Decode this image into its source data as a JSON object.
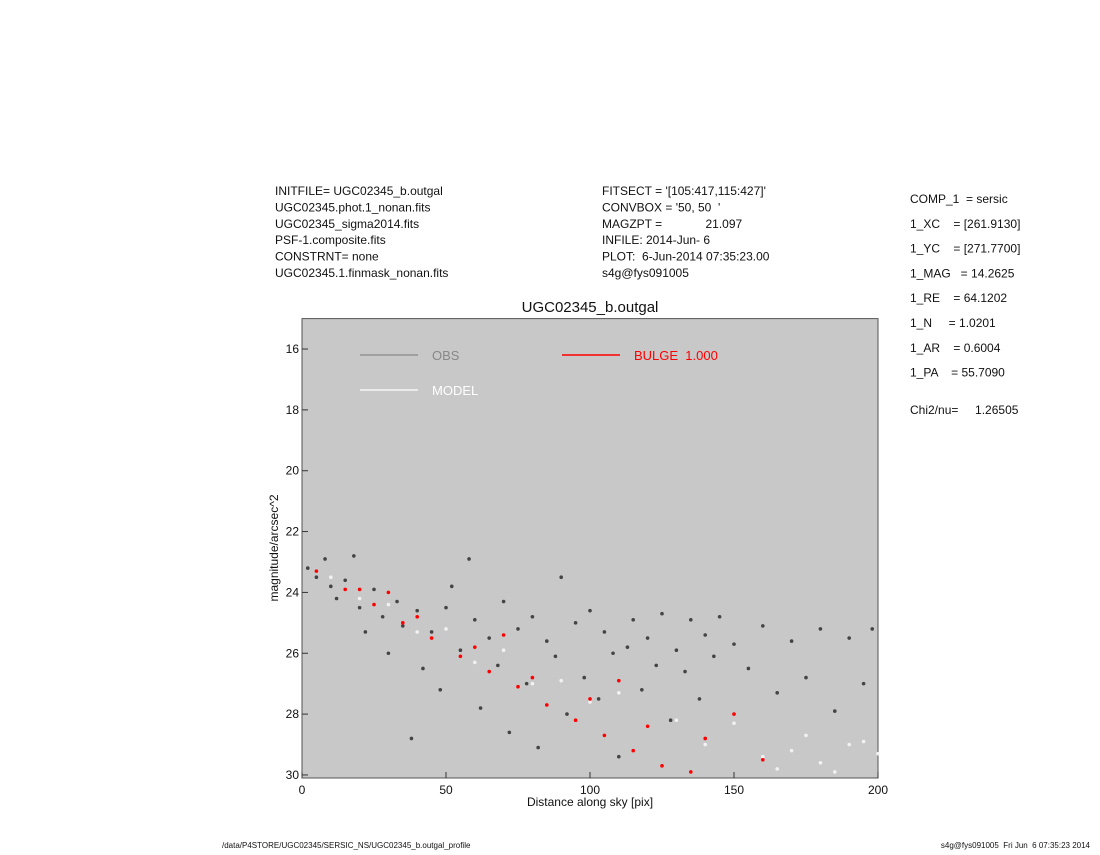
{
  "header_left": [
    "INITFILE= UGC02345_b.outgal",
    "UGC02345.phot.1_nonan.fits",
    "UGC02345_sigma2014.fits",
    "PSF-1.composite.fits",
    "CONSTRNT= none",
    "UGC02345.1.finmask_nonan.fits"
  ],
  "header_middle": [
    "FITSECT = '[105:417,115:427]'",
    "CONVBOX = '50, 50  '",
    "MAGZPT =             21.097",
    "INFILE: 2014-Jun- 6",
    "PLOT:  6-Jun-2014 07:35:23.00",
    "s4g@fys091005"
  ],
  "header_right": [
    "COMP_1  = sersic",
    "1_XC    = [261.9130]",
    "1_YC    = [271.7700]",
    "1_MAG   = 14.2625",
    "1_RE    = 64.1202",
    "1_N     = 1.0201",
    "1_AR    = 0.6004",
    "1_PA    = 55.7090"
  ],
  "chi2": "Chi2/nu=     1.26505",
  "footer_left": "/data/P4STORE/UGC02345/SERSIC_NS/UGC02345_b.outgal_profile",
  "footer_right": "s4g@fys091005  Fri Jun  6 07:35:23 2014",
  "chart_data": {
    "type": "scatter",
    "title": "UGC02345_b.outgal",
    "x_label": "Distance along sky [pix]",
    "y_label": "magnitude/arcsec^2",
    "xlim": [
      0,
      200
    ],
    "xticks": [
      0,
      50,
      100,
      150,
      200
    ],
    "ylim": [
      30.1,
      15
    ],
    "yticks": [
      16,
      18,
      20,
      22,
      24,
      26,
      28,
      30
    ],
    "series": [
      {
        "name": "OBS",
        "color": "#444444",
        "legend_color": "#888888",
        "x": [
          2,
          5,
          8,
          10,
          12,
          15,
          18,
          20,
          22,
          25,
          28,
          30,
          33,
          35,
          38,
          40,
          42,
          45,
          48,
          50,
          52,
          55,
          58,
          60,
          62,
          65,
          68,
          70,
          72,
          75,
          78,
          80,
          82,
          85,
          88,
          90,
          92,
          95,
          98,
          100,
          103,
          105,
          108,
          110,
          113,
          115,
          118,
          120,
          123,
          125,
          128,
          130,
          133,
          135,
          138,
          140,
          143,
          145,
          150,
          155,
          160,
          165,
          170,
          175,
          180,
          185,
          190,
          195,
          198
        ],
        "values": [
          23.2,
          23.5,
          22.9,
          23.8,
          24.2,
          23.6,
          22.8,
          24.5,
          25.3,
          23.9,
          24.8,
          26.0,
          24.3,
          25.1,
          28.8,
          24.6,
          26.5,
          25.3,
          27.2,
          24.5,
          23.8,
          25.9,
          22.9,
          24.9,
          27.8,
          25.5,
          26.4,
          24.3,
          28.6,
          25.2,
          27.0,
          24.8,
          29.1,
          25.6,
          26.1,
          23.5,
          28.0,
          25.0,
          26.8,
          24.6,
          27.5,
          25.3,
          26.0,
          29.4,
          25.8,
          24.9,
          27.2,
          25.5,
          26.4,
          24.7,
          28.2,
          25.9,
          26.6,
          24.9,
          27.5,
          25.4,
          26.1,
          24.8,
          25.7,
          26.5,
          25.1,
          27.3,
          25.6,
          26.8,
          25.2,
          27.9,
          25.5,
          27.0,
          25.2
        ]
      },
      {
        "name": "MODEL",
        "color": "#f2f2f2",
        "legend_color": "#ffffff",
        "x": [
          10,
          20,
          30,
          40,
          50,
          60,
          70,
          80,
          90,
          100,
          110,
          120,
          130,
          140,
          150,
          160,
          165,
          170,
          175,
          180,
          185,
          190,
          195,
          200
        ],
        "values": [
          23.5,
          24.2,
          24.4,
          25.3,
          25.2,
          26.3,
          25.9,
          27.0,
          26.9,
          27.6,
          27.3,
          28.4,
          28.2,
          29.0,
          28.3,
          29.4,
          29.8,
          29.2,
          28.7,
          29.6,
          29.9,
          29.0,
          28.9,
          29.3
        ]
      },
      {
        "name": "BULGE  1.000",
        "color": "#ff0000",
        "legend_color": "#ff0000",
        "x": [
          5,
          15,
          20,
          25,
          30,
          35,
          40,
          45,
          55,
          60,
          65,
          70,
          75,
          80,
          85,
          95,
          100,
          105,
          110,
          115,
          120,
          125,
          135,
          140,
          150,
          160
        ],
        "values": [
          23.3,
          23.9,
          23.9,
          24.4,
          24.0,
          25.0,
          24.8,
          25.5,
          26.1,
          25.8,
          26.6,
          25.4,
          27.1,
          26.8,
          27.7,
          28.2,
          27.5,
          28.7,
          26.9,
          29.2,
          28.4,
          29.7,
          29.9,
          28.8,
          28.0,
          29.5
        ]
      }
    ]
  }
}
